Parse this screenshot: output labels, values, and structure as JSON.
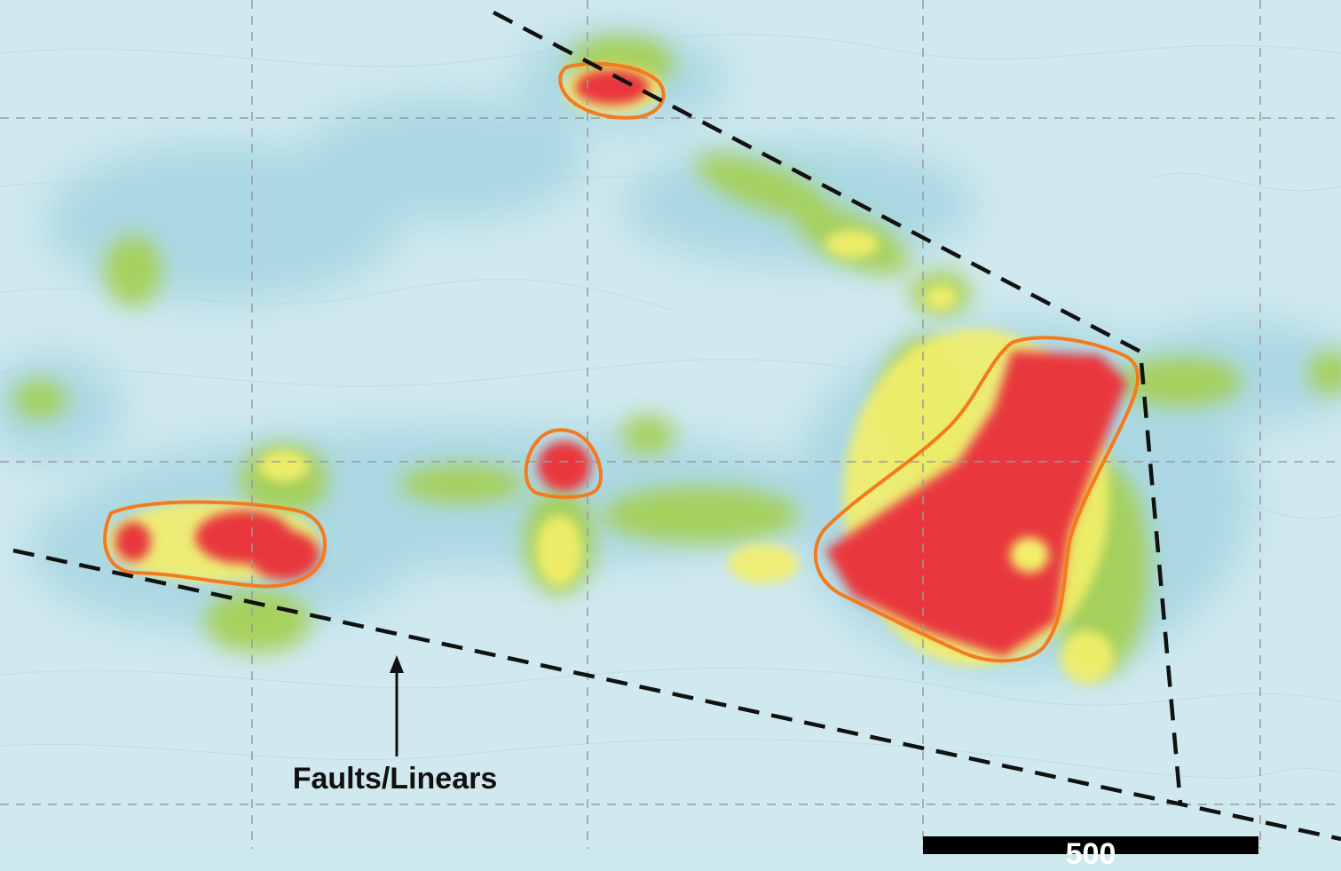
{
  "map": {
    "annotation_label": "Faults/Linears",
    "scale_bar_text": "500",
    "legend_colors": {
      "background": "#cde9ee",
      "low": "#a6d8e2",
      "moderate": "#9fcf3a",
      "elevated": "#f2ee66",
      "high": "#e8383d",
      "anomaly_outline": "#f47a1c",
      "fault_line": "#111111"
    }
  }
}
